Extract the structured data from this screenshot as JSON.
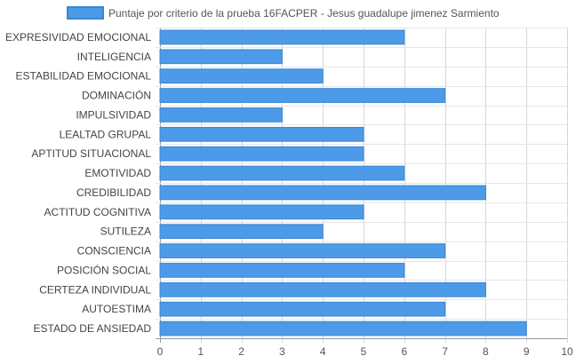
{
  "chart_data": {
    "type": "bar",
    "orientation": "horizontal",
    "categories": [
      "EXPRESIVIDAD EMOCIONAL",
      "INTELIGENCIA",
      "ESTABILIDAD EMOCIONAL",
      "DOMINACIÓN",
      "IMPULSIVIDAD",
      "LEALTAD GRUPAL",
      "APTITUD SITUACIONAL",
      "EMOTIVIDAD",
      "CREDIBILIDAD",
      "ACTITUD COGNITIVA",
      "SUTILEZA",
      "CONSCIENCIA",
      "POSICIÓN SOCIAL",
      "CERTEZA INDIVIDUAL",
      "AUTOESTIMA",
      "ESTADO DE ANSIEDAD"
    ],
    "series": [
      {
        "name": "Puntaje por criterio de la prueba 16FACPER - Jesus guadalupe jimenez Sarmiento",
        "values": [
          6,
          3,
          4,
          7,
          3,
          5,
          5,
          6,
          8,
          5,
          4,
          7,
          6,
          8,
          7,
          9
        ],
        "color": "#4d9be8",
        "border_color": "#3a86d6"
      }
    ],
    "xlim": [
      0,
      10
    ],
    "xticks": [
      "0",
      "1",
      "2",
      "3",
      "4",
      "5",
      "6",
      "7",
      "8",
      "9",
      "10"
    ],
    "grid": true,
    "legend_position": "top"
  }
}
